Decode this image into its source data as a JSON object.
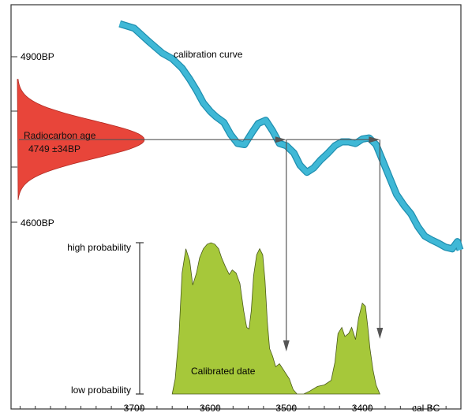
{
  "labels": {
    "y_tick_top": "4900BP",
    "y_tick_bottom": "4600BP",
    "curve_label": "calibration curve",
    "radiocarbon_line1": "Radiocarbon age",
    "radiocarbon_line2": "4749 ±34BP",
    "high_probability": "high probability",
    "low_probability": "low probability",
    "calibrated_label": "Calibrated date",
    "x_unit": "cal BC"
  },
  "x_ticks": [
    {
      "value": 3700,
      "label": "3700"
    },
    {
      "value": 3600,
      "label": "3600"
    },
    {
      "value": 3500,
      "label": "3500"
    },
    {
      "value": 3400,
      "label": "3400"
    }
  ],
  "y_ticks_bp": [
    4900,
    4600
  ],
  "radiocarbon_age": {
    "mean_bp": 4749,
    "sigma_bp": 34
  },
  "intercepts_cal_bc": [
    3500,
    3377
  ],
  "calibration_curve": [
    [
      3719,
      4958
    ],
    [
      3700,
      4950
    ],
    [
      3680,
      4925
    ],
    [
      3663,
      4905
    ],
    [
      3650,
      4895
    ],
    [
      3637,
      4878
    ],
    [
      3627,
      4858
    ],
    [
      3618,
      4838
    ],
    [
      3609,
      4815
    ],
    [
      3600,
      4800
    ],
    [
      3592,
      4790
    ],
    [
      3582,
      4780
    ],
    [
      3573,
      4758
    ],
    [
      3564,
      4742
    ],
    [
      3555,
      4740
    ],
    [
      3545,
      4762
    ],
    [
      3537,
      4778
    ],
    [
      3527,
      4784
    ],
    [
      3518,
      4765
    ],
    [
      3509,
      4742
    ],
    [
      3500,
      4738
    ],
    [
      3490,
      4725
    ],
    [
      3482,
      4703
    ],
    [
      3473,
      4690
    ],
    [
      3464,
      4698
    ],
    [
      3455,
      4712
    ],
    [
      3445,
      4725
    ],
    [
      3436,
      4738
    ],
    [
      3427,
      4745
    ],
    [
      3418,
      4745
    ],
    [
      3409,
      4742
    ],
    [
      3400,
      4750
    ],
    [
      3391,
      4752
    ],
    [
      3382,
      4740
    ],
    [
      3373,
      4710
    ],
    [
      3364,
      4680
    ],
    [
      3355,
      4650
    ],
    [
      3345,
      4630
    ],
    [
      3336,
      4615
    ],
    [
      3327,
      4592
    ],
    [
      3318,
      4575
    ],
    [
      3309,
      4568
    ],
    [
      3300,
      4562
    ],
    [
      3291,
      4555
    ],
    [
      3282,
      4552
    ],
    [
      3275,
      4565
    ],
    [
      3268,
      4550
    ]
  ],
  "probability_distribution": [
    [
      3650,
      0.0
    ],
    [
      3646,
      0.1
    ],
    [
      3641,
      0.4
    ],
    [
      3637,
      0.8
    ],
    [
      3632,
      0.96
    ],
    [
      3627,
      0.88
    ],
    [
      3623,
      0.72
    ],
    [
      3618,
      0.8
    ],
    [
      3614,
      0.9
    ],
    [
      3609,
      0.96
    ],
    [
      3604,
      0.99
    ],
    [
      3599,
      1.0
    ],
    [
      3594,
      0.99
    ],
    [
      3589,
      0.96
    ],
    [
      3585,
      0.9
    ],
    [
      3580,
      0.84
    ],
    [
      3575,
      0.79
    ],
    [
      3571,
      0.82
    ],
    [
      3566,
      0.8
    ],
    [
      3561,
      0.73
    ],
    [
      3556,
      0.55
    ],
    [
      3552,
      0.44
    ],
    [
      3549,
      0.43
    ],
    [
      3546,
      0.55
    ],
    [
      3543,
      0.78
    ],
    [
      3539,
      0.92
    ],
    [
      3535,
      0.96
    ],
    [
      3531,
      0.92
    ],
    [
      3528,
      0.75
    ],
    [
      3525,
      0.48
    ],
    [
      3522,
      0.3
    ],
    [
      3518,
      0.25
    ],
    [
      3514,
      0.18
    ],
    [
      3509,
      0.2
    ],
    [
      3505,
      0.17
    ],
    [
      3500,
      0.13
    ],
    [
      3496,
      0.1
    ],
    [
      3491,
      0.03
    ],
    [
      3486,
      0.0
    ],
    [
      3477,
      0.0
    ],
    [
      3469,
      0.02
    ],
    [
      3459,
      0.05
    ],
    [
      3450,
      0.06
    ],
    [
      3441,
      0.09
    ],
    [
      3436,
      0.21
    ],
    [
      3432,
      0.4
    ],
    [
      3427,
      0.44
    ],
    [
      3423,
      0.38
    ],
    [
      3418,
      0.4
    ],
    [
      3414,
      0.44
    ],
    [
      3409,
      0.36
    ],
    [
      3405,
      0.5
    ],
    [
      3400,
      0.6
    ],
    [
      3396,
      0.58
    ],
    [
      3393,
      0.45
    ],
    [
      3390,
      0.3
    ],
    [
      3386,
      0.16
    ],
    [
      3382,
      0.06
    ],
    [
      3377,
      0.0
    ]
  ],
  "colors": {
    "curve_fill": "#3fb8d6",
    "curve_edge": "#1f8fb0",
    "radiocarbon_fill": "#e8453a",
    "radiocarbon_edge": "#b02a22",
    "probability_fill": "#a6c83a",
    "probability_edge": "#4a5a1a",
    "line": "#333333",
    "arrow": "#555555",
    "text": "#000000"
  }
}
